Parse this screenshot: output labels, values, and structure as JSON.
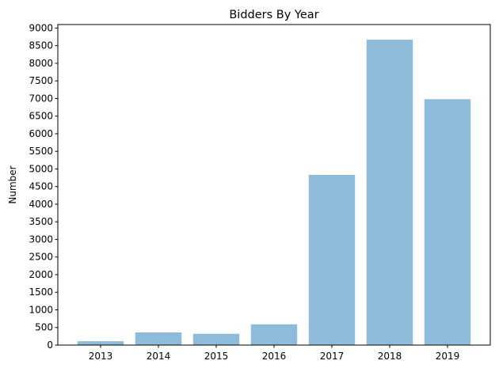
{
  "chart_data": {
    "type": "bar",
    "title": "Bidders By Year",
    "xlabel": "",
    "ylabel": "Number",
    "categories": [
      "2013",
      "2014",
      "2015",
      "2016",
      "2017",
      "2018",
      "2019"
    ],
    "values": [
      110,
      360,
      320,
      590,
      4830,
      8670,
      6980
    ],
    "ylim": [
      0,
      9100
    ],
    "yticks": [
      0,
      500,
      1000,
      1500,
      2000,
      2500,
      3000,
      3500,
      4000,
      4500,
      5000,
      5500,
      6000,
      6500,
      7000,
      7500,
      8000,
      8500,
      9000
    ],
    "bar_color": "#8fbbda",
    "grid": false,
    "legend": "none"
  }
}
